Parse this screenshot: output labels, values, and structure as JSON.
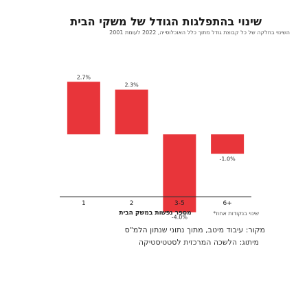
{
  "chart_data": {
    "type": "bar",
    "title": "שינוי בהתפלגות הגודל של משקי הבית",
    "subtitle": "השינוי בחלקה של כל קבוצת גודל מתוך כלל האוכלוסייה, 2022 לעומת 2001",
    "categories": [
      "1",
      "2",
      "3-5",
      "6+"
    ],
    "values": [
      2.7,
      2.3,
      -4.0,
      -1.0
    ],
    "value_labels": [
      "2.7%",
      "2.3%",
      "-4.0%",
      "-1.0%"
    ],
    "xlabel": "מספר נפשות במשק הבית",
    "ylabel": "",
    "ylim": [
      -4.0,
      2.7
    ],
    "grid": false,
    "colors": {
      "bar": "#e8353a",
      "axis": "#333333"
    }
  },
  "notes": {
    "note": "שינוי בנקודות אחוז*",
    "source": "מקור: עיבוד מיטב, מתוך נתוני שנתון הלמ\"ס",
    "footnote": "מיתוג: הלשכה המרכזית לסטטיסטיקה"
  }
}
